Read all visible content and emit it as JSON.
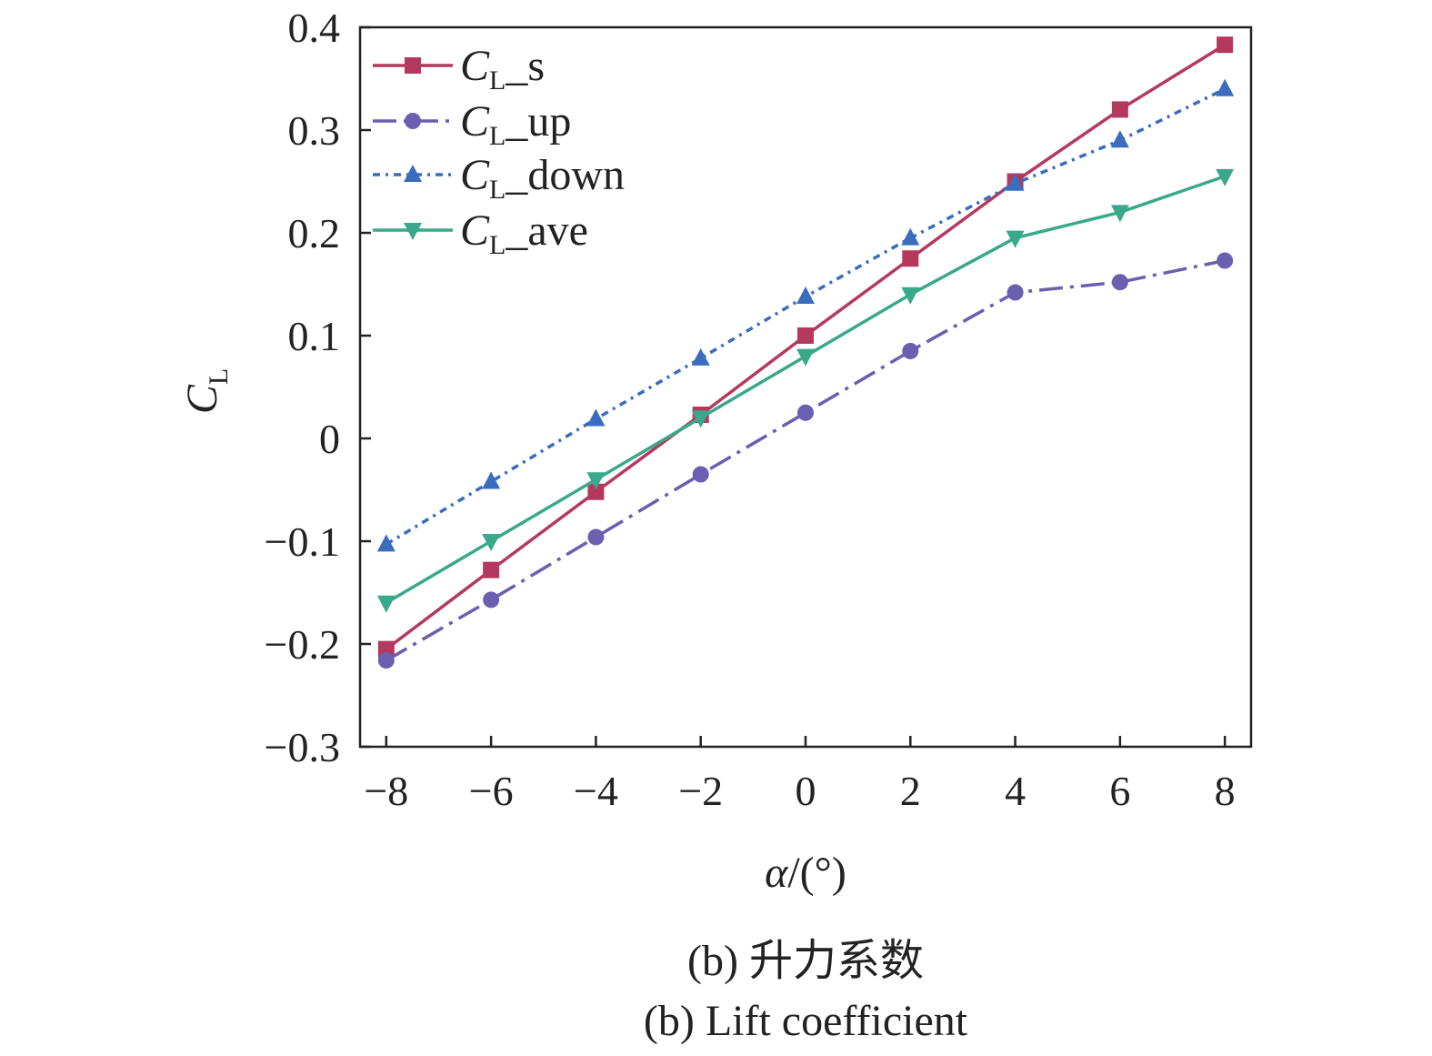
{
  "chart_data": {
    "type": "line",
    "x": [
      -8,
      -6,
      -4,
      -2,
      0,
      2,
      4,
      6,
      8
    ],
    "xlim": [
      -8.5,
      8.5
    ],
    "ylim": [
      -0.3,
      0.4
    ],
    "xticks": [
      "−8",
      "−6",
      "−4",
      "−2",
      "0",
      "2",
      "4",
      "6",
      "8"
    ],
    "yticks": [
      "−0.3",
      "−0.2",
      "−0.1",
      "0",
      "0.1",
      "0.2",
      "0.3",
      "0.4"
    ],
    "xlabel": {
      "italic": "α",
      "rest": "/(°)"
    },
    "ylabel": {
      "main": "C",
      "sub": "L"
    },
    "grid": false,
    "legend_position": "top-left",
    "series": [
      {
        "name_main": "C",
        "name_sub": "L",
        "name_suffix": "_s",
        "values": [
          -0.205,
          -0.128,
          -0.052,
          0.023,
          0.1,
          0.175,
          0.25,
          0.32,
          0.383
        ],
        "color": "#b5395f",
        "marker": "square",
        "dash": ""
      },
      {
        "name_main": "C",
        "name_sub": "L",
        "name_suffix": "_up",
        "values": [
          -0.216,
          -0.157,
          -0.096,
          -0.035,
          0.025,
          0.085,
          0.142,
          0.152,
          0.173
        ],
        "color": "#6a5fb0",
        "marker": "circle",
        "dash": "26,8,4,8"
      },
      {
        "name_main": "C",
        "name_sub": "L",
        "name_suffix": "_down",
        "values": [
          -0.103,
          -0.042,
          0.019,
          0.078,
          0.138,
          0.195,
          0.248,
          0.29,
          0.34
        ],
        "color": "#3a6cbf",
        "marker": "triangle-up",
        "dash": "8,6,3,6"
      },
      {
        "name_main": "C",
        "name_sub": "L",
        "name_suffix": "_ave",
        "values": [
          -0.16,
          -0.1,
          -0.04,
          0.02,
          0.08,
          0.14,
          0.195,
          0.22,
          0.255
        ],
        "color": "#3aa88a",
        "marker": "triangle-down",
        "dash": ""
      }
    ]
  },
  "caption": {
    "line1": "(b) 升力系数",
    "line2": "(b) Lift coefficient"
  }
}
